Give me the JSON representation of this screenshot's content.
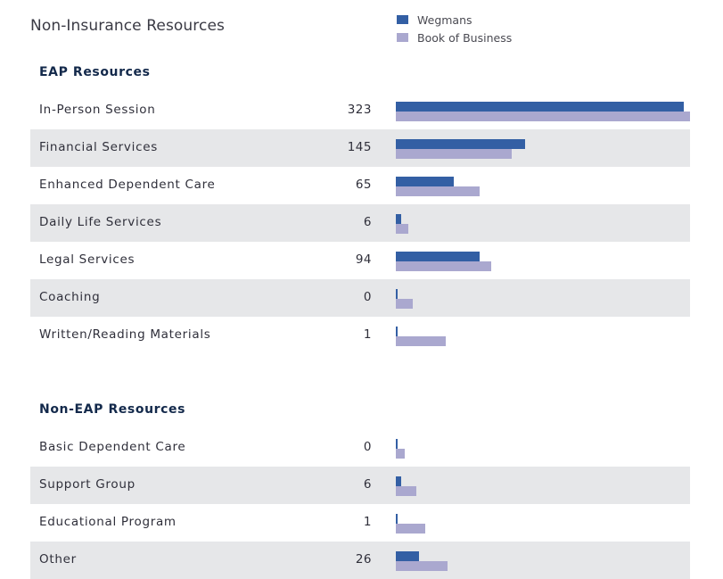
{
  "page": {
    "title": "Non-Insurance Resources"
  },
  "colors": {
    "wegmans": "#335fa4",
    "book_of_business": "#aaa8cf",
    "row_shade": "#e6e7e9",
    "section_title": "#13294b"
  },
  "legend": [
    {
      "name": "Wegmans",
      "color": "#335fa4"
    },
    {
      "name": "Book of Business",
      "color": "#aaa8cf"
    }
  ],
  "chart_data": {
    "type": "bar",
    "orientation": "horizontal",
    "title": "Non-Insurance Resources",
    "legend_position": "top-right",
    "grid": false,
    "xlim": [
      0,
      330
    ],
    "series_names": [
      "Wegmans",
      "Book of Business"
    ],
    "groups": [
      {
        "name": "EAP Resources",
        "categories": [
          "In-Person Session",
          "Financial Services",
          "Enhanced Dependent Care",
          "Daily Life Services",
          "Legal Services",
          "Coaching",
          "Written/Reading Materials"
        ],
        "series": [
          {
            "name": "Wegmans",
            "values": [
              323,
              145,
              65,
              6,
              94,
              0,
              1
            ]
          },
          {
            "name": "Book of Business",
            "values": [
              330,
              130,
              94,
              14,
              107,
              19,
              56
            ]
          }
        ],
        "labels": [
          "323",
          "145",
          "65",
          "6",
          "94",
          "0",
          "1"
        ]
      },
      {
        "name": "Non-EAP Resources",
        "categories": [
          "Basic Dependent Care",
          "Support Group",
          "Educational Program",
          "Other"
        ],
        "series": [
          {
            "name": "Wegmans",
            "values": [
              0,
              6,
              1,
              26
            ]
          },
          {
            "name": "Book of Business",
            "values": [
              10,
              23,
              33,
              58
            ]
          }
        ],
        "labels": [
          "0",
          "6",
          "1",
          "26"
        ]
      }
    ]
  }
}
